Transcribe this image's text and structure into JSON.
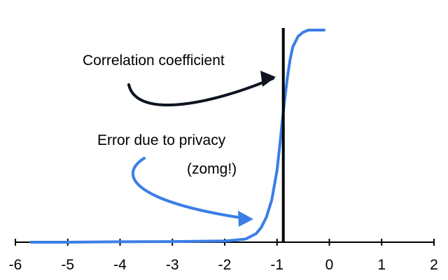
{
  "chart_data": {
    "type": "line",
    "xlim": [
      -6,
      2
    ],
    "ylim": [
      0,
      1
    ],
    "x_ticks": [
      -6,
      -5,
      -4,
      -3,
      -2,
      -1,
      0,
      1,
      2
    ],
    "x_tick_labels": [
      "-6",
      "-5",
      "-4",
      "-3",
      "-2",
      "-1",
      "0",
      "1",
      "2"
    ],
    "grid": false,
    "series": [
      {
        "color": "#3b7ee6",
        "x": [
          -5.7,
          -5.0,
          -4.0,
          -3.0,
          -2.0,
          -1.8,
          -1.6,
          -1.4,
          -1.3,
          -1.2,
          -1.1,
          -1.0,
          -0.95,
          -0.9,
          -0.85,
          -0.8,
          -0.75,
          -0.7,
          -0.6,
          -0.5,
          -0.4,
          -0.3,
          -0.1
        ],
        "y": [
          0.0,
          0.0,
          0.002,
          0.003,
          0.006,
          0.01,
          0.015,
          0.04,
          0.07,
          0.12,
          0.2,
          0.34,
          0.45,
          0.57,
          0.68,
          0.78,
          0.86,
          0.92,
          0.97,
          0.99,
          1.0,
          1.0,
          1.0
        ]
      }
    ],
    "vlines": [
      {
        "x": -0.88,
        "color": "#000000"
      }
    ],
    "annotations": [
      {
        "text": "Correlation coefficient",
        "color": "#000000"
      },
      {
        "text": "Error due to privacy",
        "color": "#000000"
      },
      {
        "text": "(zomg!)",
        "color": "#000000"
      }
    ],
    "arrow_colors": {
      "correlation": "#0d1420",
      "error": "#3b7ee6"
    }
  }
}
